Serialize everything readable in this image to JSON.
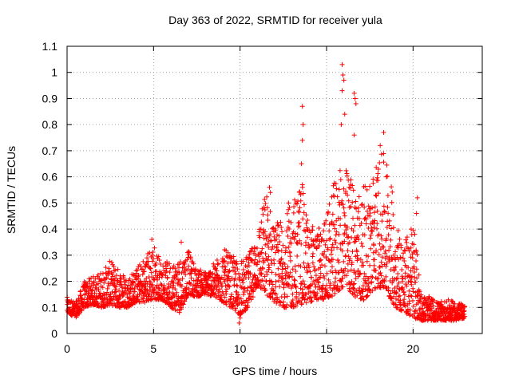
{
  "chart_data": {
    "type": "scatter",
    "title": "Day 363 of 2022, SRMTID for receiver yula",
    "xlabel": "GPS time / hours",
    "ylabel": "SRMTID / TECUs",
    "xlim": [
      0,
      24
    ],
    "ylim": [
      0,
      1.1
    ],
    "xticks": [
      0,
      5,
      10,
      15,
      20
    ],
    "yticks": [
      0,
      0.1,
      0.2,
      0.3,
      0.4,
      0.5,
      0.6,
      0.7,
      0.8,
      0.9,
      1,
      1.1
    ],
    "grid": true,
    "marker": "+",
    "color": "#ff0000",
    "envelope": {
      "hours": [
        0,
        0.5,
        1,
        1.5,
        2,
        2.5,
        3,
        3.5,
        4,
        4.5,
        5,
        5.5,
        6,
        6.5,
        7,
        7.5,
        8,
        8.5,
        9,
        9.5,
        10,
        10.5,
        11,
        11.5,
        12,
        12.5,
        13,
        13.5,
        14,
        14.5,
        15,
        15.5,
        16,
        16.5,
        17,
        17.5,
        18,
        18.5,
        19,
        19.5,
        20,
        20.5,
        21,
        21.5,
        22,
        22.5,
        23
      ],
      "low": [
        0.08,
        0.06,
        0.1,
        0.11,
        0.1,
        0.11,
        0.1,
        0.1,
        0.12,
        0.12,
        0.13,
        0.13,
        0.1,
        0.08,
        0.15,
        0.14,
        0.15,
        0.14,
        0.12,
        0.1,
        0.07,
        0.1,
        0.18,
        0.15,
        0.12,
        0.1,
        0.1,
        0.11,
        0.12,
        0.13,
        0.13,
        0.15,
        0.18,
        0.15,
        0.12,
        0.15,
        0.18,
        0.15,
        0.1,
        0.08,
        0.06,
        0.05,
        0.05,
        0.05,
        0.05,
        0.05,
        0.06
      ],
      "high": [
        0.14,
        0.12,
        0.2,
        0.22,
        0.24,
        0.28,
        0.25,
        0.22,
        0.25,
        0.3,
        0.35,
        0.27,
        0.28,
        0.3,
        0.32,
        0.25,
        0.24,
        0.27,
        0.33,
        0.3,
        0.28,
        0.3,
        0.4,
        0.56,
        0.42,
        0.45,
        0.5,
        0.6,
        0.42,
        0.4,
        0.45,
        0.6,
        0.65,
        0.6,
        0.55,
        0.6,
        0.68,
        0.7,
        0.45,
        0.35,
        0.45,
        0.15,
        0.14,
        0.12,
        0.13,
        0.12,
        0.11
      ]
    },
    "notable_points": [
      {
        "x": 13.6,
        "y": 0.87
      },
      {
        "x": 13.65,
        "y": 0.8
      },
      {
        "x": 13.6,
        "y": 0.74
      },
      {
        "x": 13.55,
        "y": 0.65
      },
      {
        "x": 13.6,
        "y": 0.57
      },
      {
        "x": 15.9,
        "y": 1.03
      },
      {
        "x": 15.95,
        "y": 0.99
      },
      {
        "x": 16.0,
        "y": 0.97
      },
      {
        "x": 15.9,
        "y": 0.93
      },
      {
        "x": 16.05,
        "y": 0.84
      },
      {
        "x": 15.85,
        "y": 0.8
      },
      {
        "x": 16.6,
        "y": 0.92
      },
      {
        "x": 16.65,
        "y": 0.9
      },
      {
        "x": 16.7,
        "y": 0.88
      },
      {
        "x": 16.6,
        "y": 0.76
      },
      {
        "x": 18.3,
        "y": 0.77
      },
      {
        "x": 18.1,
        "y": 0.72
      },
      {
        "x": 20.25,
        "y": 0.52
      },
      {
        "x": 20.2,
        "y": 0.46
      },
      {
        "x": 20.1,
        "y": 0.38
      },
      {
        "x": 11.7,
        "y": 0.56
      },
      {
        "x": 11.75,
        "y": 0.54
      },
      {
        "x": 12.8,
        "y": 0.5
      },
      {
        "x": 14.2,
        "y": 0.41
      },
      {
        "x": 4.9,
        "y": 0.36
      },
      {
        "x": 6.6,
        "y": 0.35
      },
      {
        "x": 9.95,
        "y": 0.04
      },
      {
        "x": 10.0,
        "y": 0.06
      },
      {
        "x": 10.3,
        "y": 0.12
      }
    ]
  }
}
